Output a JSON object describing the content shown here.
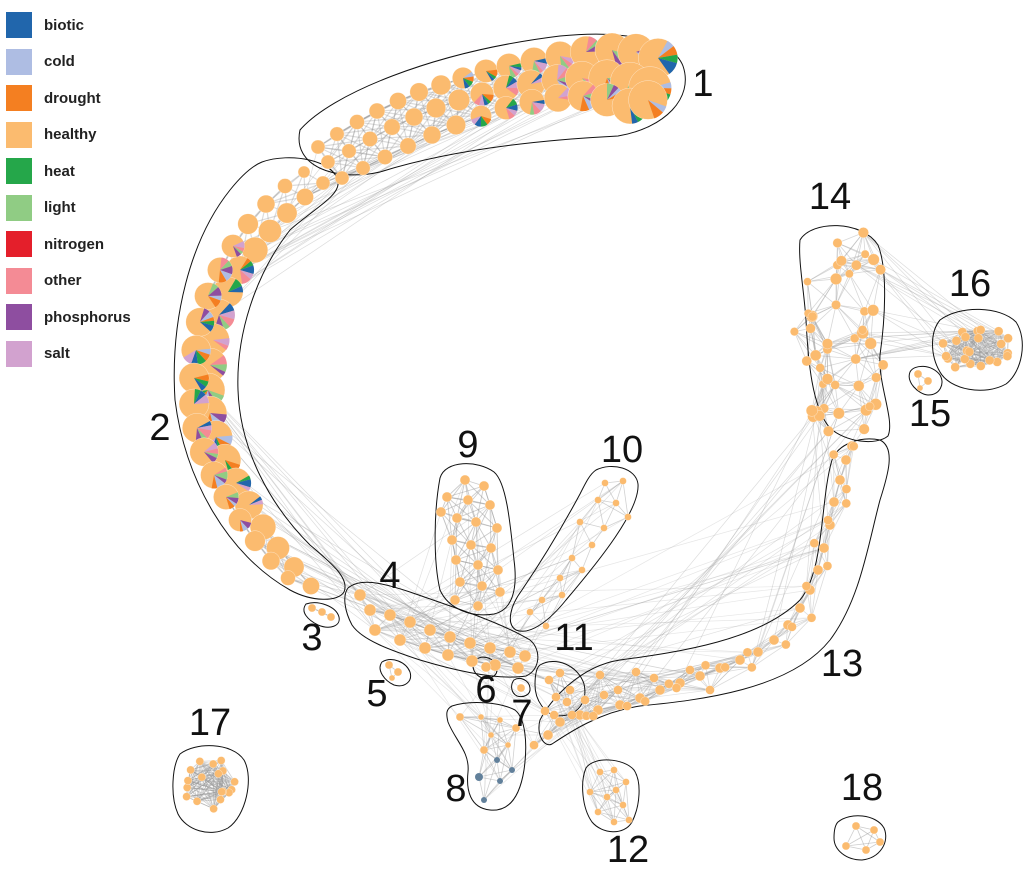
{
  "legend": [
    {
      "label": "biotic",
      "color": "#2166ac"
    },
    {
      "label": "cold",
      "color": "#aebde3"
    },
    {
      "label": "drought",
      "color": "#f47f21"
    },
    {
      "label": "healthy",
      "color": "#fbbb6f"
    },
    {
      "label": "heat",
      "color": "#25a74a"
    },
    {
      "label": "light",
      "color": "#90cc84"
    },
    {
      "label": "nitrogen",
      "color": "#e41f2b"
    },
    {
      "label": "other",
      "color": "#f48b95"
    },
    {
      "label": "phosphorus",
      "color": "#8e4ea0"
    },
    {
      "label": "salt",
      "color": "#d2a2cf"
    }
  ],
  "clusters": [
    "1",
    "2",
    "3",
    "4",
    "5",
    "6",
    "7",
    "8",
    "9",
    "10",
    "11",
    "12",
    "13",
    "14",
    "15",
    "16",
    "17",
    "18"
  ],
  "colors": {
    "edge": "#9a9a9a",
    "outline": "#111111",
    "node": "#fbbb6f",
    "label": "#111111"
  }
}
